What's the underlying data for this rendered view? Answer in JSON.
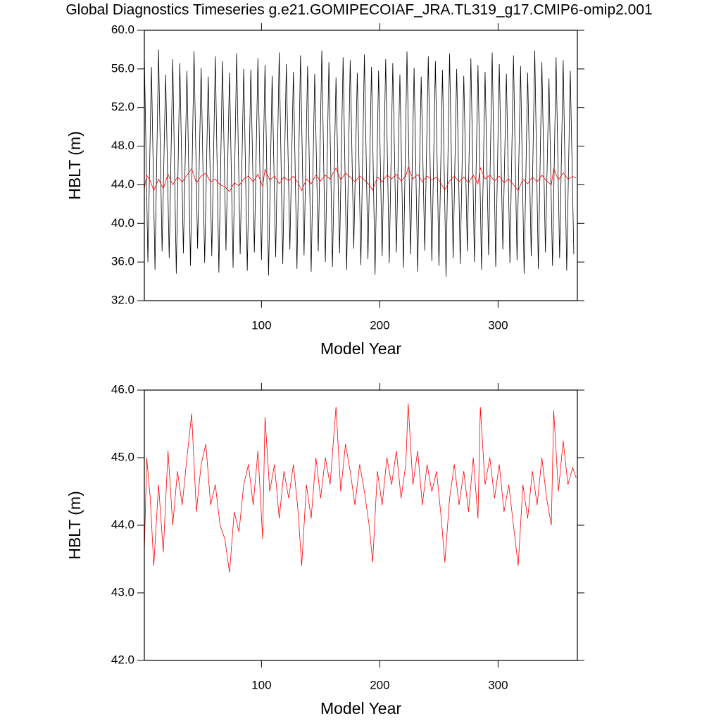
{
  "chart_data": [
    {
      "type": "line",
      "title": "Global Diagnostics Timeseries g.e21.GOMIPECOIAF_JRA.TL319_g17.CMIP6-omip2.001",
      "xlabel": "Model Year",
      "ylabel": "HBLT (m)",
      "xlim": [
        1,
        367
      ],
      "xticks": [
        100,
        200,
        300
      ],
      "ylim": [
        32,
        60
      ],
      "yticks": [
        {
          "value": 32,
          "label": "32.0"
        },
        {
          "value": 36,
          "label": "36.0"
        },
        {
          "value": 40,
          "label": "40.0"
        },
        {
          "value": 44,
          "label": "44.0"
        },
        {
          "value": 48,
          "label": "48.0"
        },
        {
          "value": 52,
          "label": "52.0"
        },
        {
          "value": 56,
          "label": "56.0"
        },
        {
          "value": 60,
          "label": "60.0"
        }
      ],
      "series": [
        {
          "color": "#000000",
          "x": [
            1,
            4,
            7,
            10,
            13,
            16,
            19,
            22,
            25,
            28,
            31,
            34,
            37,
            40,
            43,
            46,
            49,
            52,
            55,
            58,
            61,
            64,
            67,
            70,
            73,
            76,
            79,
            82,
            85,
            88,
            91,
            94,
            97,
            100,
            103,
            106,
            109,
            112,
            115,
            118,
            121,
            124,
            127,
            130,
            133,
            136,
            139,
            142,
            145,
            148,
            151,
            154,
            157,
            160,
            163,
            166,
            169,
            172,
            175,
            178,
            181,
            184,
            187,
            190,
            193,
            196,
            199,
            202,
            205,
            208,
            211,
            214,
            217,
            220,
            223,
            226,
            229,
            232,
            235,
            238,
            241,
            244,
            247,
            250,
            253,
            256,
            259,
            262,
            265,
            268,
            271,
            274,
            277,
            280,
            283,
            286,
            289,
            292,
            295,
            298,
            301,
            304,
            307,
            310,
            313,
            316,
            319,
            322,
            325,
            328,
            331,
            334,
            337,
            340,
            343,
            346,
            349,
            352,
            355,
            358,
            361,
            364
          ],
          "values": [
            57.5,
            36.0,
            56.2,
            35.2,
            58.0,
            37.1,
            55.4,
            36.4,
            57.0,
            34.8,
            56.6,
            36.9,
            55.8,
            35.6,
            57.8,
            37.4,
            56.1,
            35.9,
            55.2,
            36.6,
            57.3,
            34.9,
            56.8,
            37.2,
            55.6,
            35.4,
            57.6,
            36.8,
            56.0,
            35.1,
            55.9,
            37.0,
            57.1,
            36.2,
            56.4,
            34.6,
            55.3,
            36.5,
            57.7,
            35.8,
            56.5,
            37.3,
            55.7,
            35.3,
            57.4,
            36.7,
            56.3,
            35.0,
            55.5,
            37.1,
            57.9,
            36.0,
            56.7,
            35.5,
            55.1,
            36.9,
            57.2,
            35.2,
            56.9,
            37.4,
            55.6,
            35.7,
            57.5,
            36.3,
            56.2,
            34.7,
            55.8,
            36.6,
            57.0,
            35.9,
            56.6,
            37.0,
            55.4,
            35.4,
            57.8,
            36.8,
            56.1,
            35.0,
            55.2,
            37.2,
            57.3,
            36.1,
            56.8,
            35.6,
            55.9,
            34.5,
            57.6,
            36.4,
            56.0,
            35.8,
            55.3,
            37.1,
            57.1,
            36.0,
            56.4,
            35.2,
            55.7,
            36.7,
            57.7,
            35.5,
            56.5,
            37.3,
            55.5,
            35.9,
            57.4,
            36.2,
            56.3,
            34.8,
            55.6,
            36.6,
            57.9,
            35.3,
            56.7,
            37.0,
            55.0,
            35.6,
            57.2,
            36.4,
            56.9,
            35.1,
            55.8,
            36.8
          ]
        },
        {
          "color": "#ff0000",
          "x": [
            1,
            3,
            6,
            9,
            13,
            17,
            21,
            25,
            29,
            33,
            37,
            41,
            45,
            49,
            53,
            57,
            61,
            65,
            69,
            73,
            77,
            81,
            85,
            89,
            93,
            97,
            101,
            103,
            107,
            111,
            115,
            119,
            123,
            127,
            131,
            134,
            138,
            142,
            146,
            150,
            154,
            158,
            163,
            167,
            171,
            175,
            179,
            183,
            187,
            191,
            194,
            198,
            202,
            206,
            210,
            214,
            218,
            222,
            224,
            228,
            232,
            236,
            240,
            244,
            248,
            252,
            255,
            259,
            263,
            267,
            271,
            275,
            279,
            283,
            285,
            289,
            293,
            297,
            301,
            305,
            309,
            313,
            317,
            321,
            325,
            329,
            333,
            337,
            341,
            345,
            347,
            351,
            355,
            359,
            363,
            366
          ],
          "values": [
            43.6,
            45.0,
            44.4,
            43.4,
            44.6,
            43.6,
            45.1,
            44.0,
            44.8,
            44.3,
            45.0,
            45.65,
            44.2,
            44.9,
            45.2,
            44.3,
            44.6,
            44.0,
            43.8,
            43.3,
            44.2,
            43.9,
            44.6,
            44.9,
            44.3,
            45.1,
            43.8,
            45.6,
            44.5,
            44.9,
            44.1,
            44.8,
            44.4,
            44.9,
            44.2,
            43.4,
            44.6,
            44.1,
            45.0,
            44.4,
            45.0,
            44.6,
            45.75,
            44.5,
            45.2,
            44.8,
            44.3,
            44.9,
            44.5,
            44.0,
            43.45,
            44.8,
            44.3,
            45.0,
            44.6,
            45.1,
            44.4,
            44.9,
            45.8,
            44.6,
            45.1,
            44.3,
            44.9,
            44.5,
            44.8,
            44.1,
            43.45,
            44.4,
            44.9,
            44.3,
            44.8,
            44.2,
            45.0,
            44.1,
            45.75,
            44.6,
            45.0,
            44.4,
            44.9,
            44.2,
            44.6,
            44.0,
            43.4,
            44.6,
            44.1,
            44.8,
            44.3,
            45.0,
            44.4,
            44.0,
            45.7,
            44.5,
            45.25,
            44.6,
            44.85,
            44.7
          ]
        }
      ]
    },
    {
      "type": "line",
      "xlabel": "Model Year",
      "ylabel": "HBLT (m)",
      "xlim": [
        1,
        367
      ],
      "xticks": [
        100,
        200,
        300
      ],
      "ylim": [
        42,
        46
      ],
      "yticks": [
        {
          "value": 42,
          "label": "42.0"
        },
        {
          "value": 43,
          "label": "43.0"
        },
        {
          "value": 44,
          "label": "44.0"
        },
        {
          "value": 45,
          "label": "45.0"
        },
        {
          "value": 46,
          "label": "46.0"
        }
      ],
      "series": [
        {
          "color": "#ff0000",
          "x": [
            1,
            3,
            6,
            9,
            13,
            17,
            21,
            25,
            29,
            33,
            37,
            41,
            45,
            49,
            53,
            57,
            61,
            65,
            69,
            73,
            77,
            81,
            85,
            89,
            93,
            97,
            101,
            103,
            107,
            111,
            115,
            119,
            123,
            127,
            131,
            134,
            138,
            142,
            146,
            150,
            154,
            158,
            163,
            167,
            171,
            175,
            179,
            183,
            187,
            191,
            194,
            198,
            202,
            206,
            210,
            214,
            218,
            222,
            224,
            228,
            232,
            236,
            240,
            244,
            248,
            252,
            255,
            259,
            263,
            267,
            271,
            275,
            279,
            283,
            285,
            289,
            293,
            297,
            301,
            305,
            309,
            313,
            317,
            321,
            325,
            329,
            333,
            337,
            341,
            345,
            347,
            351,
            355,
            359,
            363,
            366
          ],
          "values": [
            43.6,
            45.0,
            44.4,
            43.4,
            44.6,
            43.6,
            45.1,
            44.0,
            44.8,
            44.3,
            45.0,
            45.65,
            44.2,
            44.9,
            45.2,
            44.3,
            44.6,
            44.0,
            43.8,
            43.3,
            44.2,
            43.9,
            44.6,
            44.9,
            44.3,
            45.1,
            43.8,
            45.6,
            44.5,
            44.9,
            44.1,
            44.8,
            44.4,
            44.9,
            44.2,
            43.4,
            44.6,
            44.1,
            45.0,
            44.4,
            45.0,
            44.6,
            45.75,
            44.5,
            45.2,
            44.8,
            44.3,
            44.9,
            44.5,
            44.0,
            43.45,
            44.8,
            44.3,
            45.0,
            44.6,
            45.1,
            44.4,
            44.9,
            45.8,
            44.6,
            45.1,
            44.3,
            44.9,
            44.5,
            44.8,
            44.1,
            43.45,
            44.4,
            44.9,
            44.3,
            44.8,
            44.2,
            45.0,
            44.1,
            45.75,
            44.6,
            45.0,
            44.4,
            44.9,
            44.2,
            44.6,
            44.0,
            43.4,
            44.6,
            44.1,
            44.8,
            44.3,
            45.0,
            44.4,
            44.0,
            45.7,
            44.5,
            45.25,
            44.6,
            44.85,
            44.7
          ]
        }
      ]
    }
  ]
}
